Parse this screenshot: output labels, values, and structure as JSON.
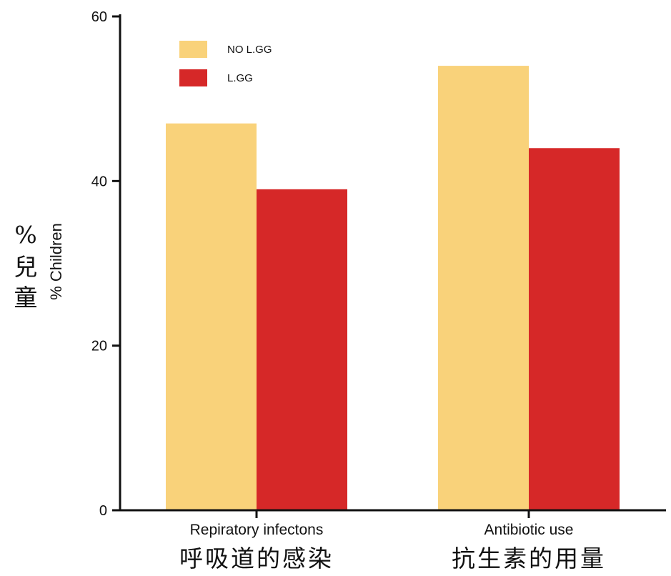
{
  "chart_data": {
    "type": "bar",
    "categories": [
      "Repiratory infectons",
      "Antibiotic use"
    ],
    "categories_zh": [
      "呼吸道的感染",
      "抗生素的用量"
    ],
    "series": [
      {
        "name": "NO L.GG",
        "color": "#f9d27a",
        "values": [
          47,
          54
        ]
      },
      {
        "name": "L.GG",
        "color": "#d62828",
        "values": [
          39,
          44
        ]
      }
    ],
    "ylabel": "% Children",
    "ylabel_zh": [
      "%",
      "兒",
      "童"
    ],
    "ylim": [
      0,
      60
    ],
    "yticks": [
      0,
      20,
      40,
      60
    ],
    "grid": false,
    "legend_position": "top-left"
  }
}
